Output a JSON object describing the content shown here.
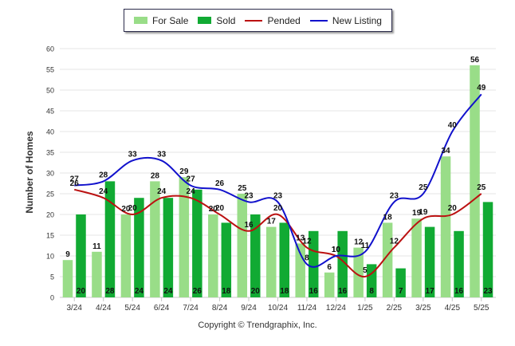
{
  "chart_data": {
    "type": "bar",
    "categories": [
      "3/24",
      "4/24",
      "5/24",
      "6/24",
      "7/24",
      "8/24",
      "9/24",
      "10/24",
      "11/24",
      "12/24",
      "1/25",
      "2/25",
      "3/25",
      "4/25",
      "5/25"
    ],
    "series": [
      {
        "name": "For Sale",
        "kind": "bar",
        "color": "#99dd88",
        "values": [
          9,
          11,
          20,
          28,
          29,
          20,
          25,
          17,
          13,
          6,
          12,
          18,
          19,
          34,
          56
        ]
      },
      {
        "name": "Sold",
        "kind": "bar",
        "color": "#11aa33",
        "values": [
          20,
          28,
          24,
          24,
          26,
          18,
          20,
          18,
          16,
          16,
          8,
          7,
          17,
          16,
          23
        ]
      },
      {
        "name": "Pended",
        "kind": "line",
        "color": "#bb1111",
        "values": [
          26,
          24,
          20,
          24,
          24,
          20,
          16,
          20,
          12,
          10,
          5,
          12,
          19,
          20,
          25
        ]
      },
      {
        "name": "New Listing",
        "kind": "line",
        "color": "#1111cc",
        "values": [
          27,
          28,
          33,
          33,
          27,
          26,
          23,
          23,
          8,
          10,
          11,
          23,
          25,
          40,
          49
        ]
      }
    ],
    "ylabel": "Number of Homes",
    "ylim": [
      0,
      60
    ],
    "yticks": [
      0,
      5,
      10,
      15,
      20,
      25,
      30,
      35,
      40,
      45,
      50,
      55,
      60
    ],
    "grid": true,
    "legend": "top-center"
  },
  "copyright": "Copyright © Trendgraphix, Inc."
}
